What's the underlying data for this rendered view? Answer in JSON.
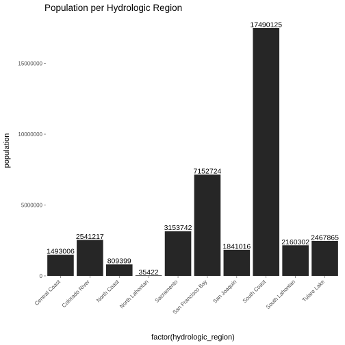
{
  "chart_data": {
    "type": "bar",
    "title": "Population per Hydrologic Region",
    "xlabel": "factor(hydrologic_region)",
    "ylabel": "population",
    "categories": [
      "Central Coast",
      "Colorado River",
      "North Coast",
      "North Lahontan",
      "Sacramento",
      "San Francisco Bay",
      "San Joaquin",
      "South Coast",
      "South Lahontan",
      "Tulare Lake"
    ],
    "values": [
      1493006,
      2541217,
      809399,
      35422,
      3153742,
      7152724,
      1841016,
      17490125,
      2160302,
      2467865
    ],
    "data_labels": [
      "1493006",
      "2541217",
      "809399",
      "35422",
      "3153742",
      "7152724",
      "1841016",
      "17490125",
      "2160302",
      "2467865"
    ],
    "yticks": [
      0,
      5000000,
      10000000,
      15000000
    ],
    "ytick_labels": [
      "0",
      "5000000",
      "10000000",
      "15000000"
    ],
    "ylim": [
      0,
      17490125
    ],
    "bar_color": "#262626",
    "grid": false,
    "legend": "none"
  }
}
